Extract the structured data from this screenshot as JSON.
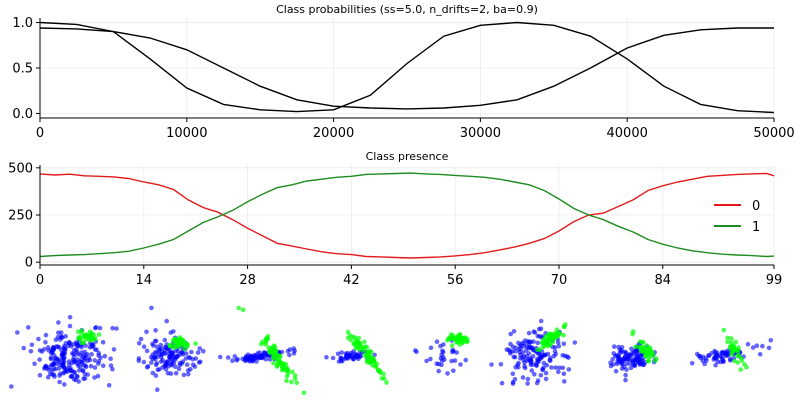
{
  "chart_data": [
    {
      "type": "line",
      "title": "Class probabilities (ss=5.0, n_drifts=2, ba=0.9)",
      "xlabel": "",
      "ylabel": "",
      "xlim": [
        0,
        50000
      ],
      "ylim": [
        -0.05,
        1.05
      ],
      "x_ticks": [
        "0",
        "10000",
        "20000",
        "30000",
        "40000",
        "50000"
      ],
      "y_ticks": [
        "0.0",
        "0.5",
        "1.0"
      ],
      "grid": true,
      "legend": "none",
      "color": "#000000",
      "series": [
        {
          "x": [
            0,
            2500,
            5000,
            7500,
            10000,
            12500,
            15000,
            17500,
            20000,
            22500,
            25000,
            27500,
            30000,
            32500,
            35000,
            37500,
            40000,
            42500,
            45000,
            47500,
            50000
          ],
          "values": [
            1.0,
            0.98,
            0.9,
            0.6,
            0.28,
            0.1,
            0.04,
            0.02,
            0.04,
            0.2,
            0.55,
            0.85,
            0.97,
            1.0,
            0.97,
            0.85,
            0.6,
            0.3,
            0.1,
            0.03,
            0.01
          ]
        },
        {
          "x": [
            0,
            2500,
            5000,
            7500,
            10000,
            12500,
            15000,
            17500,
            20000,
            22500,
            25000,
            27500,
            30000,
            32500,
            35000,
            37500,
            40000,
            42500,
            45000,
            47500,
            50000
          ],
          "values": [
            0.94,
            0.93,
            0.9,
            0.83,
            0.7,
            0.5,
            0.3,
            0.15,
            0.08,
            0.06,
            0.05,
            0.06,
            0.09,
            0.15,
            0.3,
            0.5,
            0.72,
            0.86,
            0.92,
            0.94,
            0.94
          ]
        }
      ]
    },
    {
      "type": "line",
      "title": "Class presence",
      "xlabel": "",
      "ylabel": "",
      "xlim": [
        0,
        99
      ],
      "ylim": [
        -15,
        515
      ],
      "x_ticks": [
        "0",
        "14",
        "28",
        "42",
        "56",
        "70",
        "84",
        "99"
      ],
      "y_ticks": [
        "0",
        "250",
        "500"
      ],
      "grid": true,
      "legend": "center-right",
      "series": [
        {
          "name": "0",
          "color": "#e31a1c",
          "x": [
            0,
            2,
            4,
            6,
            8,
            10,
            12,
            14,
            16,
            18,
            20,
            22,
            24,
            26,
            28,
            30,
            32,
            34,
            36,
            38,
            40,
            42,
            44,
            46,
            48,
            50,
            52,
            54,
            56,
            58,
            60,
            62,
            64,
            66,
            68,
            70,
            72,
            74,
            76,
            78,
            80,
            82,
            84,
            86,
            88,
            90,
            92,
            94,
            96,
            98,
            99
          ],
          "values": [
            468,
            462,
            466,
            458,
            455,
            452,
            443,
            425,
            410,
            385,
            330,
            290,
            265,
            225,
            180,
            140,
            100,
            85,
            70,
            55,
            45,
            40,
            30,
            28,
            25,
            22,
            25,
            28,
            33,
            40,
            50,
            65,
            80,
            100,
            125,
            165,
            215,
            250,
            260,
            295,
            330,
            380,
            405,
            425,
            440,
            455,
            460,
            465,
            468,
            470,
            458
          ]
        },
        {
          "name": "1",
          "color": "#1e8c1e",
          "x": [
            0,
            2,
            4,
            6,
            8,
            10,
            12,
            14,
            16,
            18,
            20,
            22,
            24,
            26,
            28,
            30,
            32,
            34,
            36,
            38,
            40,
            42,
            44,
            46,
            48,
            50,
            52,
            54,
            56,
            58,
            60,
            62,
            64,
            66,
            68,
            70,
            72,
            74,
            76,
            78,
            80,
            82,
            84,
            86,
            88,
            90,
            92,
            94,
            96,
            98,
            99
          ],
          "values": [
            30,
            35,
            38,
            40,
            45,
            50,
            58,
            75,
            95,
            120,
            165,
            210,
            240,
            275,
            320,
            360,
            395,
            410,
            430,
            440,
            450,
            455,
            465,
            468,
            470,
            472,
            468,
            465,
            460,
            455,
            450,
            440,
            425,
            410,
            380,
            335,
            285,
            250,
            225,
            190,
            160,
            120,
            95,
            75,
            60,
            50,
            42,
            38,
            35,
            30,
            32
          ]
        }
      ]
    }
  ],
  "scatter_panels": {
    "colors": [
      "#0000ff",
      "#00ff00"
    ]
  }
}
